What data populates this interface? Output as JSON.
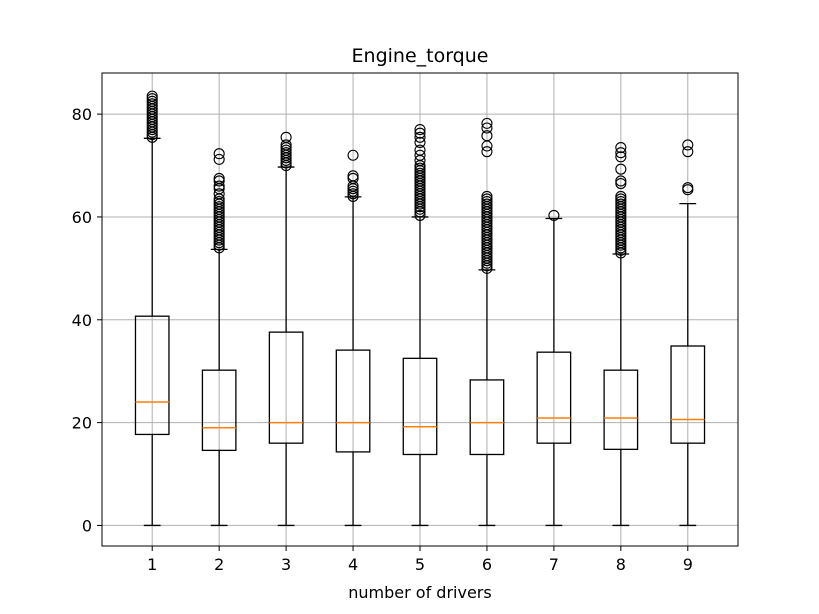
{
  "chart_data": {
    "type": "box",
    "title": "Engine_torque",
    "xlabel": "number of drivers",
    "ylabel": "",
    "categories": [
      "1",
      "2",
      "3",
      "4",
      "5",
      "6",
      "7",
      "8",
      "9"
    ],
    "ylim": [
      -4,
      88
    ],
    "yticks": [
      0,
      20,
      40,
      60,
      80
    ],
    "grid": true,
    "colors": {
      "box": "#000000",
      "median": "#ff7f0e",
      "grid": "#b0b0b0"
    },
    "boxes": [
      {
        "category": "1",
        "whisker_low": 0,
        "q1": 17.7,
        "median": 24.0,
        "q3": 40.7,
        "whisker_high": 75.3,
        "fliers": [
          75.5,
          76.0,
          76.5,
          77.0,
          77.5,
          78.0,
          78.5,
          79.0,
          79.5,
          80.0,
          80.5,
          81.0,
          81.5,
          82.0,
          82.5,
          83.0,
          83.5
        ]
      },
      {
        "category": "2",
        "whisker_low": 0,
        "q1": 14.6,
        "median": 19.0,
        "q3": 30.2,
        "whisker_high": 53.7,
        "fliers": [
          54.0,
          54.5,
          55.0,
          55.5,
          56.0,
          56.5,
          57.0,
          57.5,
          58.0,
          58.5,
          59.0,
          59.5,
          60.0,
          60.5,
          61.0,
          61.5,
          62.0,
          62.5,
          63.0,
          63.5,
          64.5,
          65.5,
          66.0,
          67.0,
          67.5,
          71.2,
          72.3
        ]
      },
      {
        "category": "3",
        "whisker_low": 0,
        "q1": 16.0,
        "median": 20.0,
        "q3": 37.6,
        "whisker_high": 69.7,
        "fliers": [
          70.0,
          70.5,
          71.0,
          71.5,
          72.0,
          72.5,
          73.0,
          73.5,
          74.0,
          75.5
        ]
      },
      {
        "category": "4",
        "whisker_low": 0,
        "q1": 14.3,
        "median": 20.0,
        "q3": 34.1,
        "whisker_high": 63.9,
        "fliers": [
          64.0,
          64.5,
          65.0,
          65.5,
          66.0,
          67.5,
          68.0,
          72.0
        ]
      },
      {
        "category": "5",
        "whisker_low": 0,
        "q1": 13.8,
        "median": 19.2,
        "q3": 32.5,
        "whisker_high": 60.0,
        "fliers": [
          60.3,
          61.0,
          61.5,
          62.0,
          62.5,
          63.0,
          63.5,
          64.0,
          64.5,
          65.0,
          65.5,
          66.0,
          66.5,
          67.0,
          67.5,
          68.0,
          68.5,
          69.0,
          69.5,
          70.0,
          71.0,
          72.0,
          73.0,
          74.5,
          75.5,
          76.3,
          77.0
        ]
      },
      {
        "category": "6",
        "whisker_low": 0,
        "q1": 13.8,
        "median": 20.0,
        "q3": 28.3,
        "whisker_high": 49.7,
        "fliers": [
          50.0,
          50.5,
          51.0,
          51.5,
          52.0,
          52.5,
          53.0,
          53.5,
          54.0,
          54.5,
          55.0,
          55.5,
          56.0,
          56.5,
          57.0,
          57.5,
          58.0,
          58.5,
          59.0,
          59.5,
          60.0,
          60.5,
          61.0,
          61.5,
          62.0,
          62.5,
          63.0,
          63.5,
          64.0,
          72.7,
          73.8,
          75.8,
          77.3,
          78.2
        ]
      },
      {
        "category": "7",
        "whisker_low": 0,
        "q1": 16.0,
        "median": 20.9,
        "q3": 33.7,
        "whisker_high": 59.7,
        "fliers": [
          60.3
        ]
      },
      {
        "category": "8",
        "whisker_low": 0,
        "q1": 14.8,
        "median": 20.9,
        "q3": 30.2,
        "whisker_high": 52.8,
        "fliers": [
          53.0,
          53.5,
          54.0,
          54.5,
          55.0,
          55.5,
          56.0,
          56.5,
          57.0,
          57.5,
          58.0,
          58.5,
          59.0,
          59.5,
          60.0,
          60.5,
          61.0,
          61.5,
          62.0,
          62.5,
          63.0,
          63.5,
          64.0,
          66.5,
          67.0,
          69.3,
          71.7,
          72.5,
          73.5
        ]
      },
      {
        "category": "9",
        "whisker_low": 0,
        "q1": 16.0,
        "median": 20.6,
        "q3": 34.9,
        "whisker_high": 62.6,
        "fliers": [
          65.3,
          65.7,
          72.7,
          74.0
        ]
      }
    ]
  }
}
